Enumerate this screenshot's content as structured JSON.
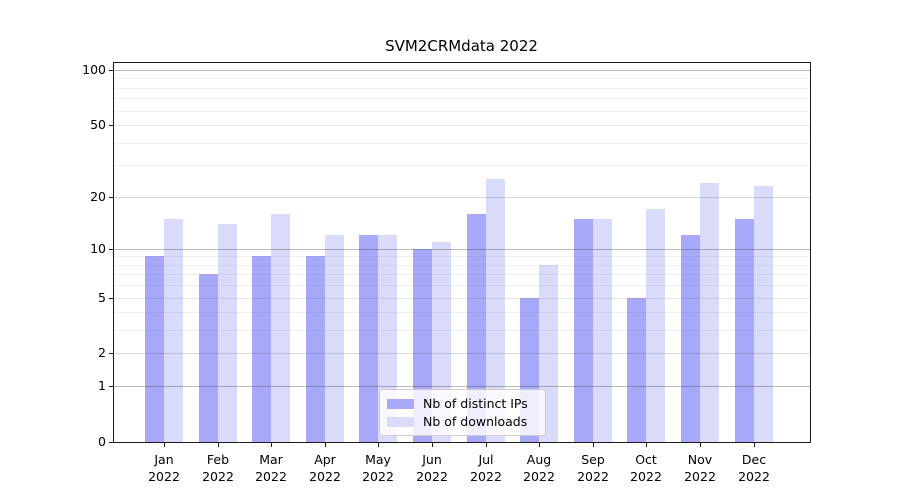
{
  "title": "SVM2CRMdata 2022",
  "chart_data": {
    "type": "bar",
    "title": "SVM2CRMdata 2022",
    "categories": [
      "Jan 2022",
      "Feb 2022",
      "Mar 2022",
      "Apr 2022",
      "May 2022",
      "Jun 2022",
      "Jul 2022",
      "Aug 2022",
      "Sep 2022",
      "Oct 2022",
      "Nov 2022",
      "Dec 2022"
    ],
    "series": [
      {
        "name": "Nb of distinct IPs",
        "color": "#a8a8fa",
        "values": [
          9,
          7,
          9,
          9,
          12,
          10,
          16,
          5,
          15,
          5,
          12,
          15
        ]
      },
      {
        "name": "Nb of downloads",
        "color": "#dadafb",
        "values": [
          15,
          14,
          16,
          12,
          12,
          11,
          25,
          8,
          15,
          17,
          24,
          23
        ]
      }
    ],
    "xlabel": "",
    "ylabel": "",
    "yscale": "log10(1+x)",
    "ylim": [
      0,
      110
    ],
    "yticks": [
      0,
      1,
      2,
      5,
      10,
      20,
      50,
      100
    ],
    "major_gridlines": [
      1,
      10,
      100
    ],
    "minor_gridlines": [
      2,
      3,
      4,
      6,
      7,
      8,
      9,
      20,
      30,
      40,
      60,
      70,
      80,
      90
    ],
    "ticked_gridlines": [
      2,
      5,
      20,
      50
    ],
    "grid": "on",
    "legend_position": "lower center"
  }
}
